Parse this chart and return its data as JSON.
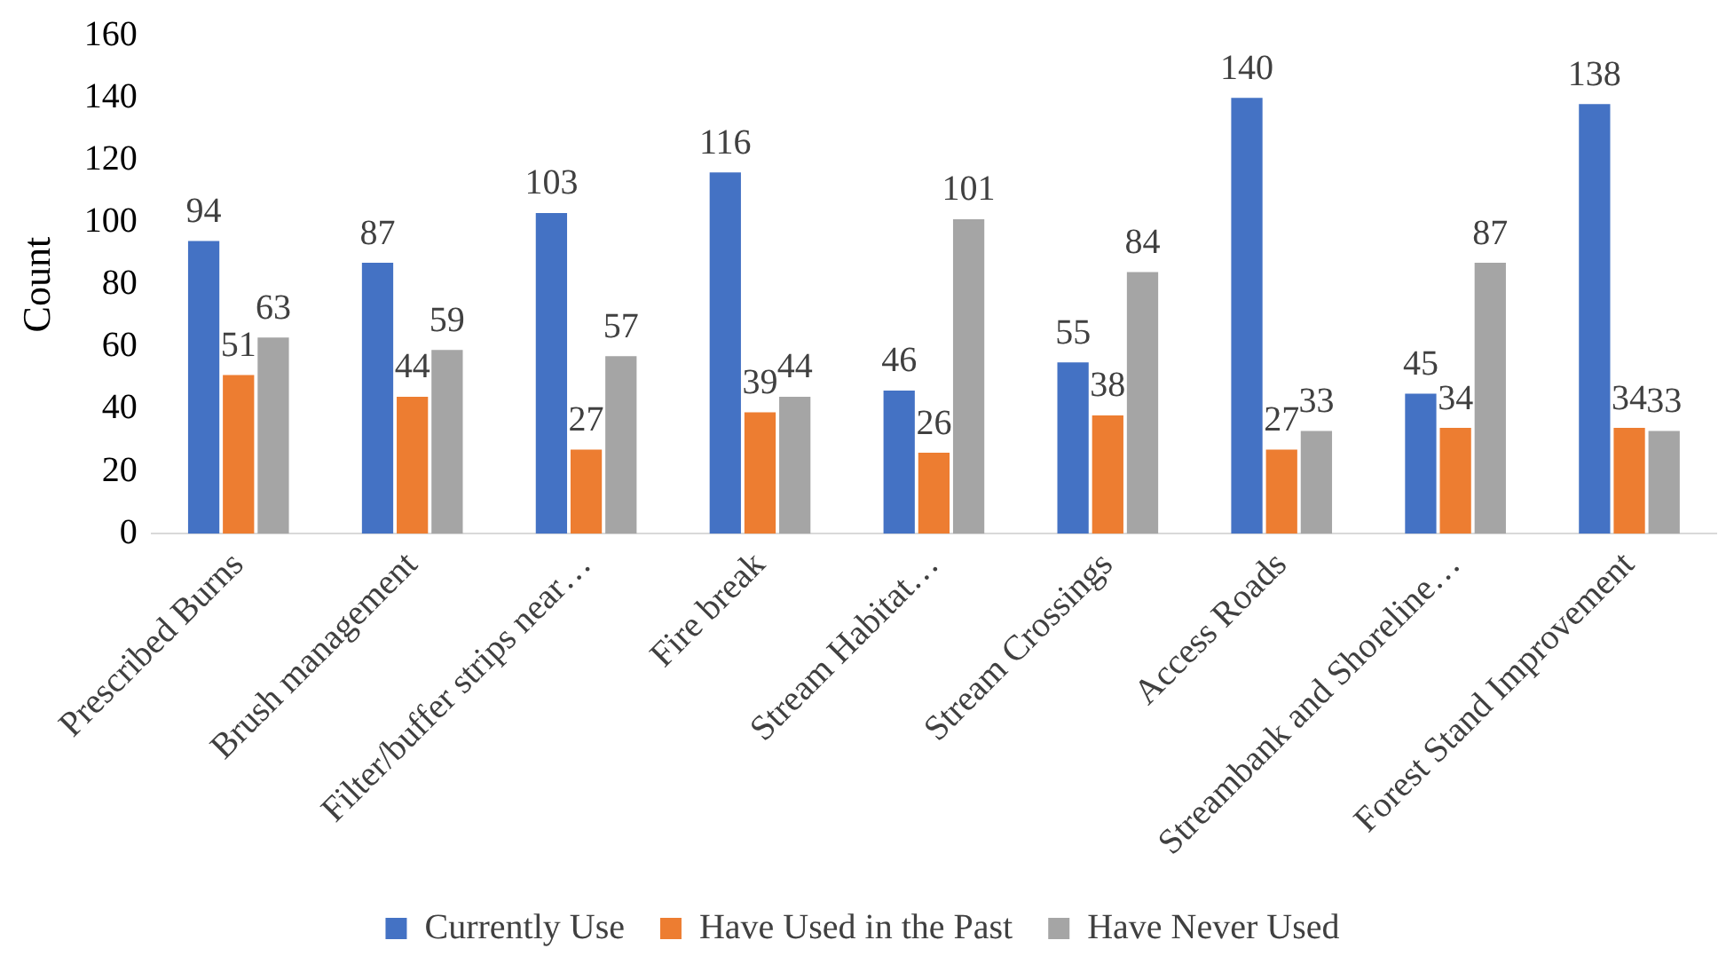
{
  "chart_data": {
    "type": "bar",
    "ylabel": "Count",
    "categories": [
      "Prescribed Burns",
      "Brush management",
      "Filter/buffer strips near…",
      "Fire break",
      "Stream Habitat…",
      "Stream Crossings",
      "Access Roads",
      "Streambank and Shoreline…",
      "Forest Stand Improvement"
    ],
    "series": [
      {
        "name": "Currently Use",
        "color": "#4472c4",
        "values": [
          94,
          87,
          103,
          116,
          46,
          55,
          140,
          45,
          138
        ]
      },
      {
        "name": "Have Used in the Past",
        "color": "#ed7d31",
        "values": [
          51,
          44,
          27,
          39,
          26,
          38,
          27,
          34,
          34
        ]
      },
      {
        "name": "Have Never Used",
        "color": "#a5a5a5",
        "values": [
          63,
          59,
          57,
          44,
          101,
          84,
          33,
          87,
          33
        ]
      }
    ],
    "ylim": [
      0,
      160
    ],
    "yticks": [
      0,
      20,
      40,
      60,
      80,
      100,
      120,
      140,
      160
    ],
    "grid": false,
    "legend": "bottom",
    "data_labels": true
  }
}
